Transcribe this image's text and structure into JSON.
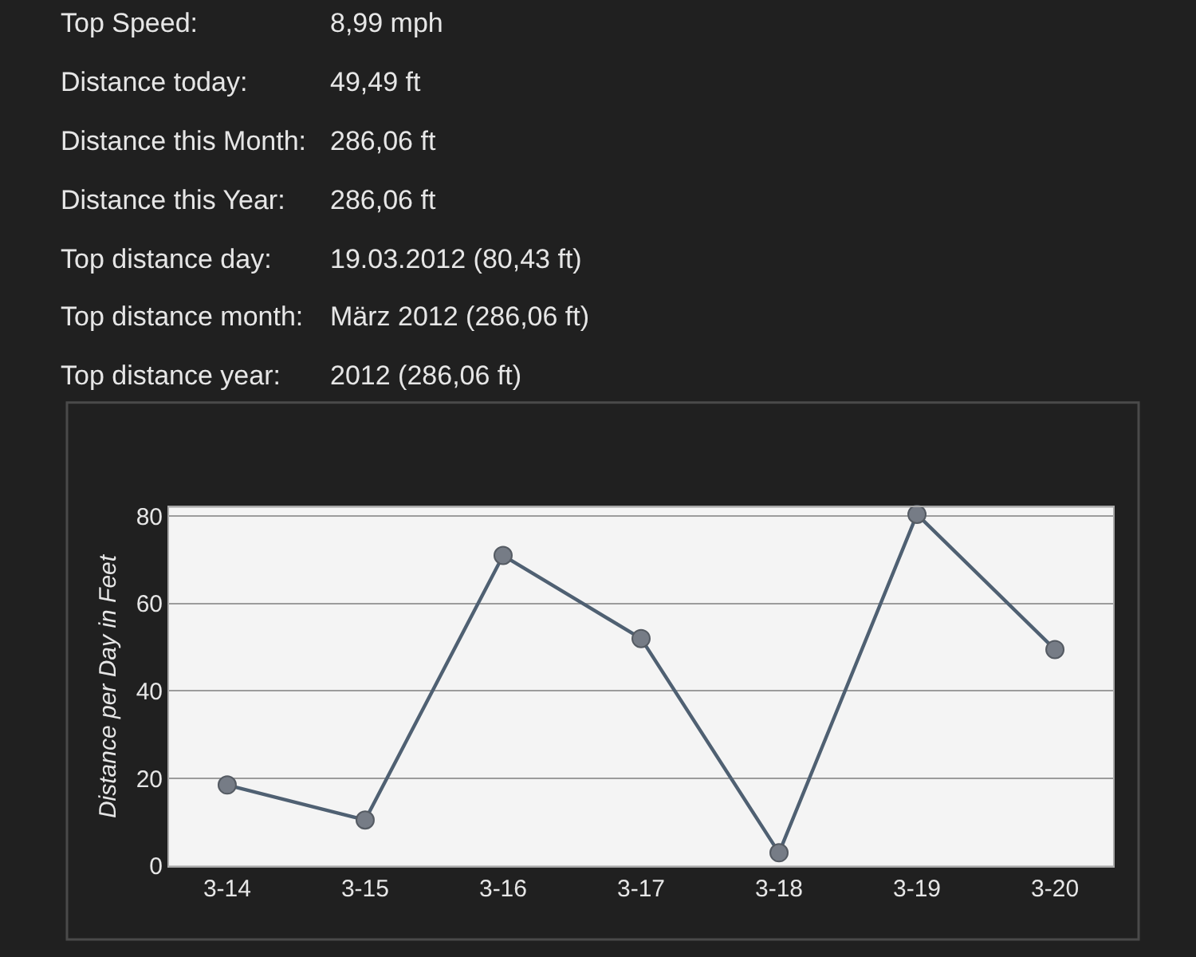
{
  "chart_data": [
    {
      "type": "other",
      "annotations": [
        "Top Speed:",
        "8,99 mph",
        "Distance today:",
        "49,49 ft",
        "Distance this Month:",
        "286,06 ft",
        "Distance this Year:",
        "286,06 ft",
        "Top distance day:",
        "19.03.2012 (80,43 ft)",
        "Top distance month:",
        "März 2012 (286,06 ft)",
        "Top distance year:",
        "2012 (286,06 ft)"
      ]
    },
    {
      "type": "line",
      "categories": [
        "3-14",
        "3-15",
        "3-16",
        "3-17",
        "3-18",
        "3-19",
        "3-20"
      ],
      "series": [
        {
          "color": "#4f6072",
          "values": [
            18.5,
            10.5,
            71,
            52,
            3,
            80.4,
            49.5
          ]
        }
      ],
      "ylabel": "Distance per Day in Feet",
      "ylim": [
        0,
        82
      ],
      "yticks": [
        0,
        20,
        40,
        60,
        80
      ],
      "grid": "y",
      "marker": "circle",
      "line_style": "solid"
    }
  ]
}
